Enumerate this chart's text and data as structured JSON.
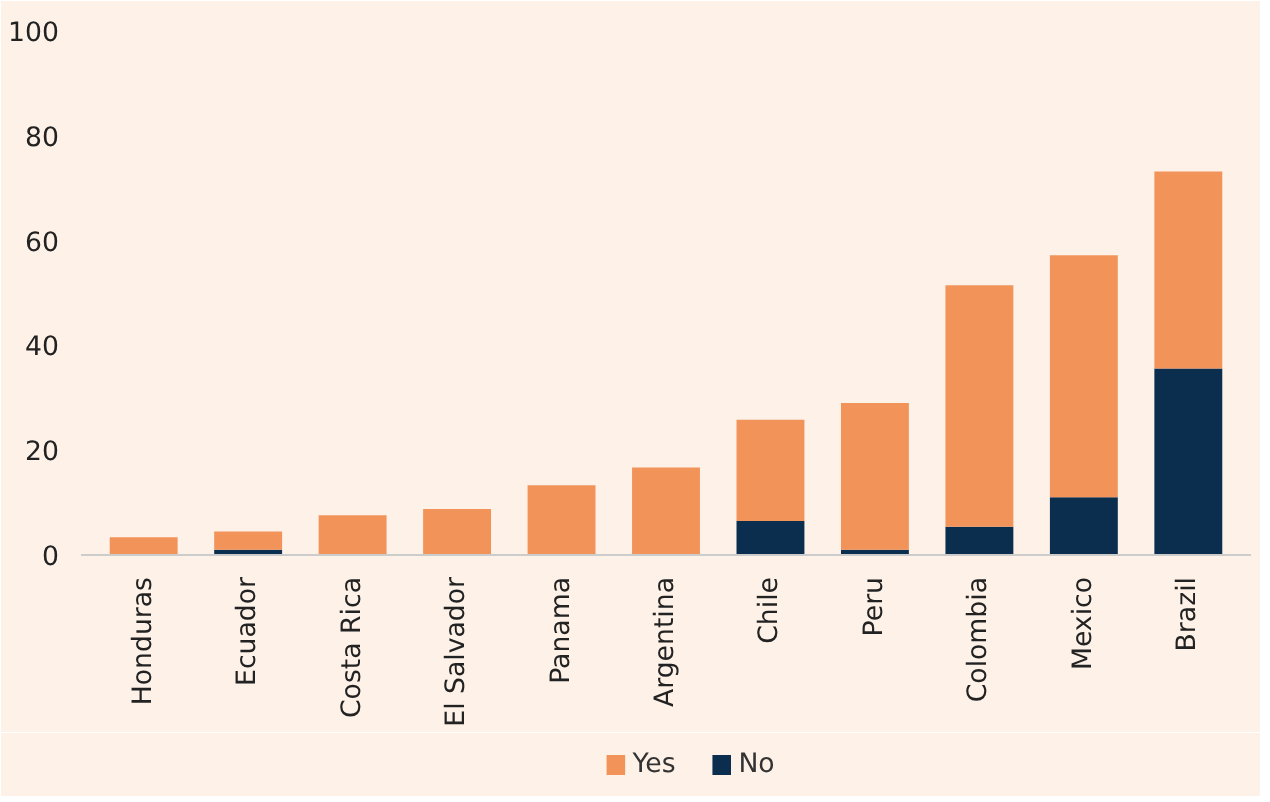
{
  "chart_data": {
    "type": "bar",
    "stacked": true,
    "categories": [
      "Honduras",
      "Ecuador",
      "Costa Rica",
      "El Salvador",
      "Panama",
      "Argentina",
      "Chile",
      "Peru",
      "Colombia",
      "Mexico",
      "Brazil"
    ],
    "series": [
      {
        "name": "No",
        "color": "#0b2d4e",
        "values": [
          0,
          1.0,
          0,
          0,
          0,
          0,
          6.5,
          1.0,
          5.4,
          11.0,
          35.6
        ]
      },
      {
        "name": "Yes",
        "color": "#f2935a",
        "values": [
          3.4,
          3.5,
          7.6,
          8.8,
          13.3,
          16.7,
          19.3,
          28.0,
          46.1,
          46.2,
          37.6
        ]
      }
    ],
    "ylim": [
      0,
      100
    ],
    "yticks": [
      0,
      20,
      40,
      60,
      80,
      100
    ],
    "grid": false,
    "legend": "bottom"
  }
}
